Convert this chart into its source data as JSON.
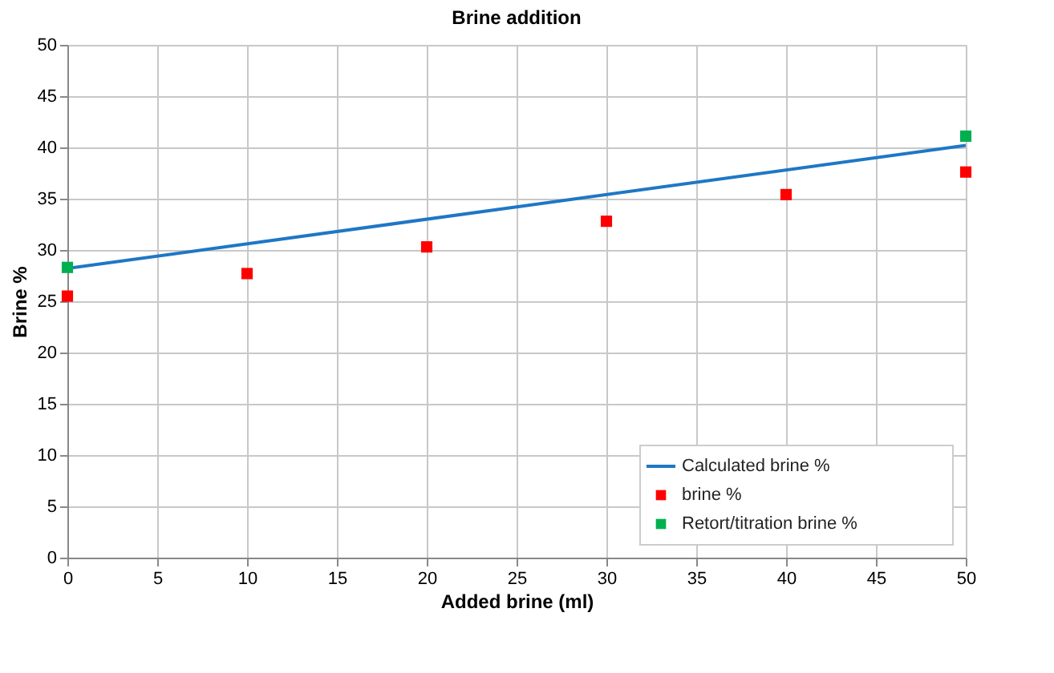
{
  "chart_data": {
    "type": "scatter",
    "title": "Brine addition",
    "xlabel": "Added brine (ml)",
    "ylabel": "Brine %",
    "xlim": [
      0,
      50
    ],
    "xticks": [
      0,
      5,
      10,
      15,
      20,
      25,
      30,
      35,
      40,
      45,
      50
    ],
    "ylim": [
      0,
      50
    ],
    "yticks": [
      0,
      5,
      10,
      15,
      20,
      25,
      30,
      35,
      40,
      45,
      50
    ],
    "grid": true,
    "legend": "bottom right",
    "series": [
      {
        "name": "Calculated brine %",
        "type": "line",
        "color": "#1f77c4",
        "x": [
          0,
          50
        ],
        "values": [
          28.2,
          40.2
        ]
      },
      {
        "name": "brine %",
        "marker": "square",
        "color": "#ff0000",
        "x": [
          0,
          10,
          20,
          30,
          40,
          50
        ],
        "values": [
          25.5,
          27.7,
          30.3,
          32.8,
          35.4,
          37.6
        ]
      },
      {
        "name": "Retort/titration brine %",
        "marker": "square",
        "color": "#00b050",
        "x": [
          0,
          50
        ],
        "values": [
          28.3,
          41.1
        ]
      }
    ]
  }
}
